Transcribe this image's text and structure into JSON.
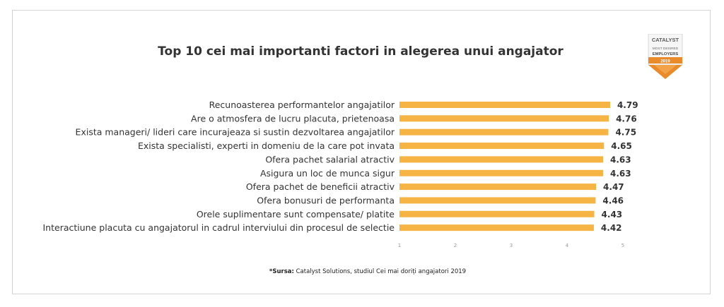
{
  "title": "Top 10 cei mai importanti factori in alegerea unui angajator",
  "badge": {
    "line1": "CATALYST",
    "line2": "MOST DESIRED",
    "line3": "EMPLOYERS",
    "year": "2019"
  },
  "source": {
    "prefix": "*Sursa:",
    "text": " Catalyst Solutions, studiul Cei mai doriți angajatori 2019"
  },
  "colors": {
    "bar": "#F5B443",
    "label": "#333333",
    "value": "#333333",
    "tick": "#9a9a9a",
    "badge_orange": "#E98A2B",
    "badge_gray": "#9a9a9a"
  },
  "chart_data": {
    "type": "bar",
    "orientation": "horizontal",
    "title": "Top 10 cei mai importanti factori in alegerea unui angajator",
    "categories": [
      "Recunoasterea performantelor angajatilor",
      "Are o atmosfera de lucru placuta, prietenoasa",
      "Exista manageri/ lideri care incurajeaza si sustin dezvoltarea angajatilor",
      "Exista specialisti, experti in domeniu de la care pot invata",
      "Ofera pachet salarial atractiv",
      "Asigura un loc de munca sigur",
      "Ofera pachet de beneficii atractiv",
      "Ofera bonusuri de performanta",
      "Orele suplimentare sunt compensate/ platite",
      "Interactiune placuta cu angajatorul in cadrul interviului din procesul de selectie"
    ],
    "values": [
      4.79,
      4.76,
      4.75,
      4.65,
      4.63,
      4.63,
      4.47,
      4.46,
      4.43,
      4.42
    ],
    "value_labels": [
      "4.79",
      "4.76",
      "4.75",
      "4.65",
      "4.63",
      "4.63",
      "4.47",
      "4.46",
      "4.43",
      "4.42"
    ],
    "xlim": [
      0,
      5
    ],
    "xticks": [
      "1",
      "2",
      "3",
      "4",
      "5"
    ],
    "grid": false,
    "legend": "none"
  }
}
